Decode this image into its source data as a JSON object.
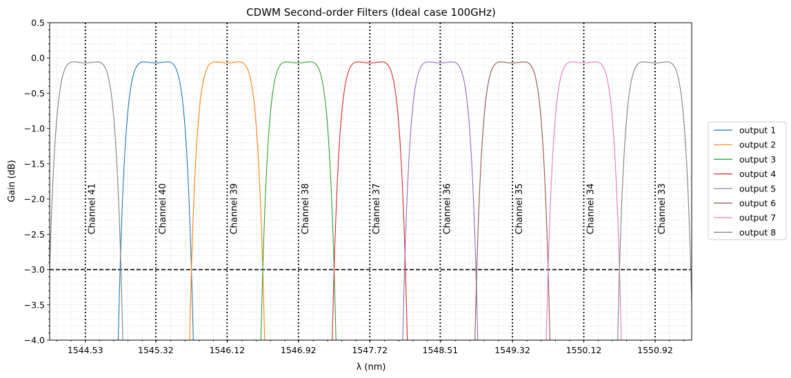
{
  "chart_data": {
    "type": "line",
    "title": "CDWM Second-order Filters (Ideal case 100GHz)",
    "xlabel": "λ (nm)",
    "ylabel": "Gain (dB)",
    "xlim": [
      1544.13,
      1551.33
    ],
    "ylim": [
      -4.0,
      0.5
    ],
    "x_ticks": [
      1544.53,
      1545.32,
      1546.12,
      1546.92,
      1547.72,
      1548.51,
      1549.32,
      1550.12,
      1550.92
    ],
    "x_tick_labels": [
      "1544.53",
      "1545.32",
      "1546.12",
      "1546.92",
      "1547.72",
      "1548.51",
      "1549.32",
      "1550.12",
      "1550.92"
    ],
    "y_ticks": [
      0.5,
      0.0,
      -0.5,
      -1.0,
      -1.5,
      -2.0,
      -2.5,
      -3.0,
      -3.5,
      -4.0
    ],
    "y_tick_labels": [
      "0.5",
      "0.0",
      "−0.5",
      "−1.0",
      "−1.5",
      "−2.0",
      "−2.5",
      "−3.0",
      "−3.5",
      "−4.0"
    ],
    "grid": true,
    "legend_position": "right",
    "threshold": {
      "y": -3.0,
      "style": "dashed"
    },
    "channel_markers": [
      {
        "x": 1544.53,
        "label": "Channel 41"
      },
      {
        "x": 1545.32,
        "label": "Channel 40"
      },
      {
        "x": 1546.12,
        "label": "Channel 39"
      },
      {
        "x": 1546.92,
        "label": "Channel 38"
      },
      {
        "x": 1547.72,
        "label": "Channel 37"
      },
      {
        "x": 1548.51,
        "label": "Channel 36"
      },
      {
        "x": 1549.32,
        "label": "Channel 35"
      },
      {
        "x": 1550.12,
        "label": "Channel 34"
      },
      {
        "x": 1550.92,
        "label": "Channel 33"
      }
    ],
    "passband": {
      "peak_offsets_nm": [
        -0.16,
        0.16
      ],
      "peak_gain_db": -0.03,
      "center_gain_db": -0.07,
      "minus3db_halfwidth_nm": 0.4
    },
    "series": [
      {
        "name": "output 1",
        "color": "#1f77b4",
        "centers": [
          1545.32
        ]
      },
      {
        "name": "output 2",
        "color": "#ff7f0e",
        "centers": [
          1546.12
        ]
      },
      {
        "name": "output 3",
        "color": "#2ca02c",
        "centers": [
          1546.92
        ]
      },
      {
        "name": "output 4",
        "color": "#d62728",
        "centers": [
          1547.72
        ]
      },
      {
        "name": "output 5",
        "color": "#9467bd",
        "centers": [
          1548.51
        ]
      },
      {
        "name": "output 6",
        "color": "#8c564b",
        "centers": [
          1549.32
        ]
      },
      {
        "name": "output 7",
        "color": "#e377c2",
        "centers": [
          1550.12
        ]
      },
      {
        "name": "output 8",
        "color": "#7f7f7f",
        "centers": [
          1544.53,
          1550.92
        ]
      }
    ]
  }
}
